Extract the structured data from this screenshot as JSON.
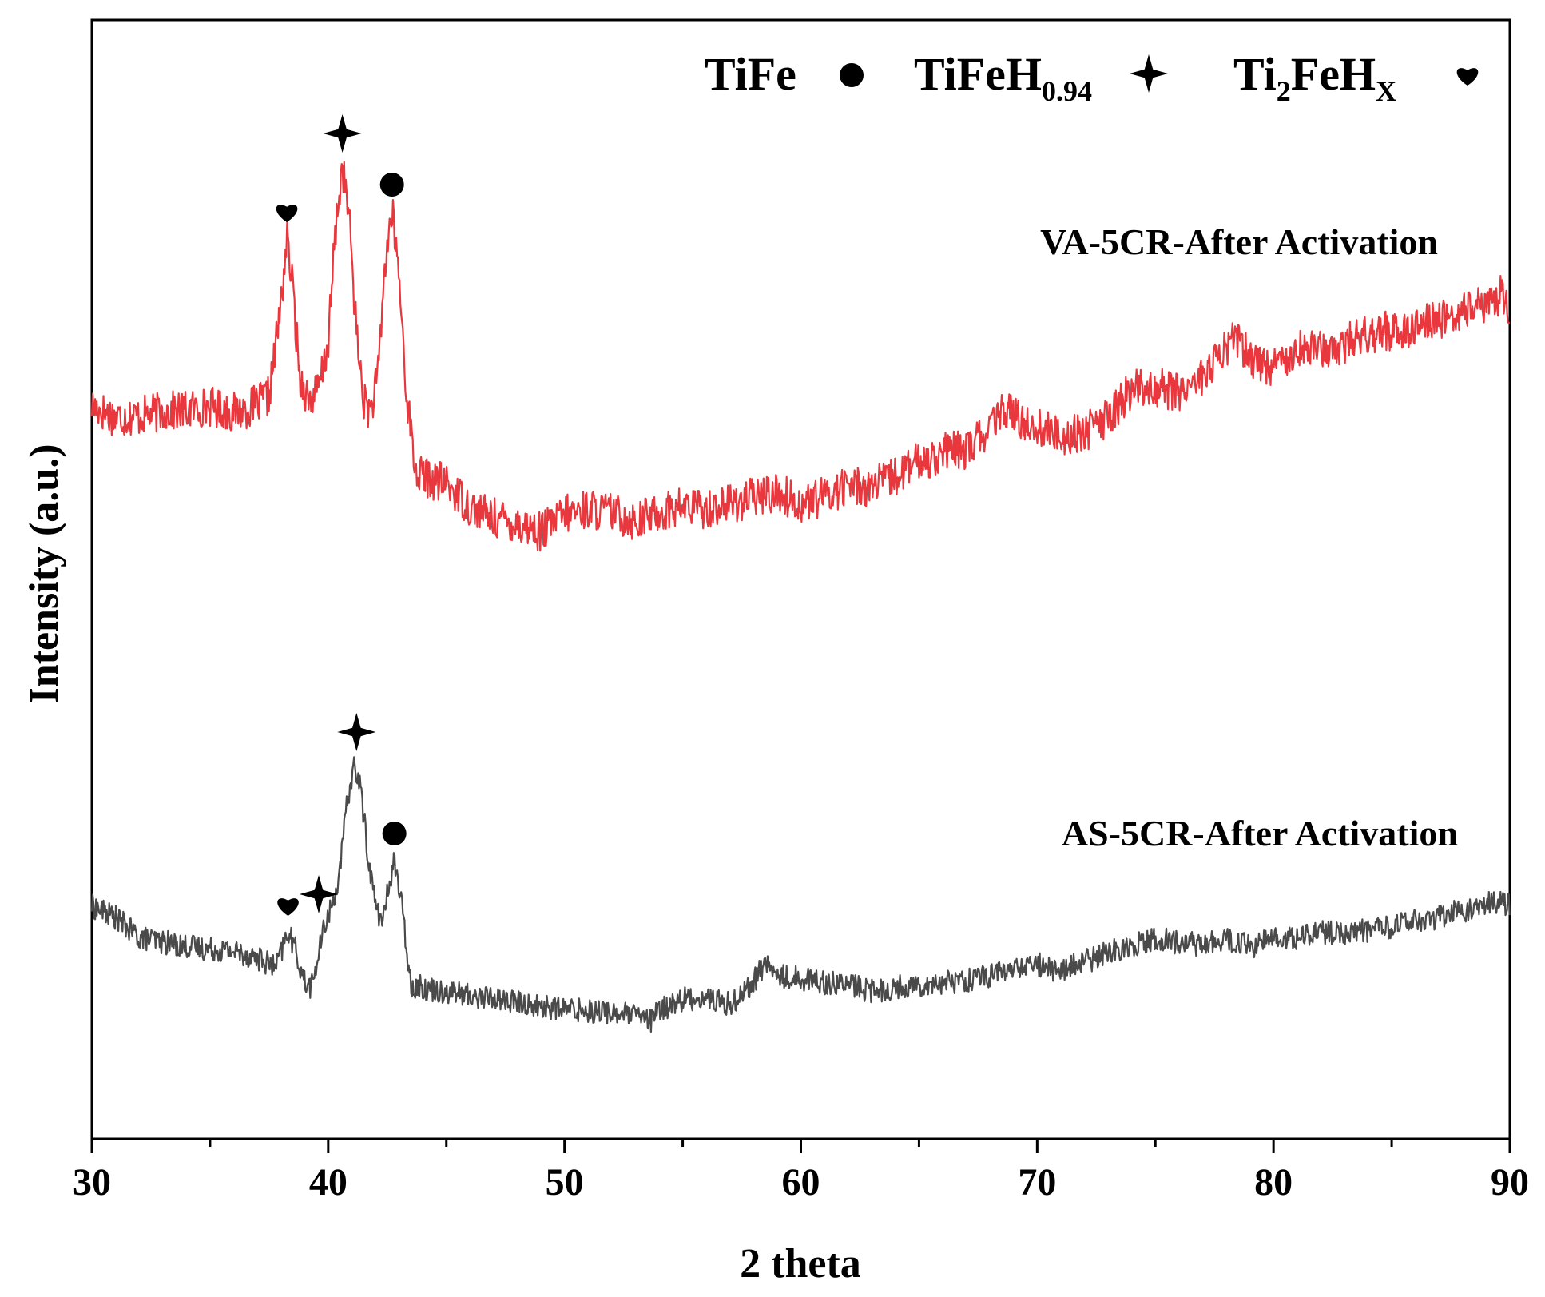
{
  "chart_data": {
    "type": "line",
    "title": "",
    "xlabel": "2 theta",
    "ylabel": "Intensity (a.u.)",
    "xlim": [
      30,
      90
    ],
    "ylim": [
      0,
      100
    ],
    "x_ticks": [
      30,
      40,
      50,
      60,
      70,
      80,
      90
    ],
    "x_tick_labels": [
      "30",
      "40",
      "50",
      "60",
      "70",
      "80",
      "90"
    ],
    "y_ticks_shown": false,
    "legend": {
      "placement": "top-right",
      "entries": [
        {
          "base": "TiFe",
          "sub": "",
          "tail": "",
          "tail_sub": "",
          "marker": "circle"
        },
        {
          "base": "TiFeH",
          "sub": "0.94",
          "tail": "",
          "tail_sub": "",
          "marker": "star"
        },
        {
          "base": "Ti",
          "sub": "2",
          "tail": "FeH",
          "tail_sub": "X",
          "marker": "heart"
        }
      ]
    },
    "series": [
      {
        "name": "VA-5CR-After Activation",
        "color": "#e8383d",
        "points": [
          [
            30,
            65.5
          ],
          [
            31,
            64.5
          ],
          [
            32,
            64.6
          ],
          [
            33,
            65.0
          ],
          [
            34,
            65.1
          ],
          [
            35,
            65.5
          ],
          [
            36,
            64.9
          ],
          [
            37,
            65.6
          ],
          [
            37.5,
            66.4
          ],
          [
            38.0,
            74.5
          ],
          [
            38.25,
            80.5
          ],
          [
            38.5,
            76.0
          ],
          [
            38.8,
            68.0
          ],
          [
            39.2,
            66.0
          ],
          [
            39.6,
            67.0
          ],
          [
            40.0,
            71.0
          ],
          [
            40.3,
            81.0
          ],
          [
            40.6,
            87.0
          ],
          [
            40.9,
            82.0
          ],
          [
            41.2,
            72.0
          ],
          [
            41.5,
            66.0
          ],
          [
            41.8,
            65.0
          ],
          [
            42.1,
            68.0
          ],
          [
            42.4,
            78.0
          ],
          [
            42.7,
            83.0
          ],
          [
            43.0,
            77.0
          ],
          [
            43.3,
            67.0
          ],
          [
            43.7,
            59.5
          ],
          [
            44.5,
            58.8
          ],
          [
            45,
            58.6
          ],
          [
            46,
            56.5
          ],
          [
            47,
            55.5
          ],
          [
            48,
            55.0
          ],
          [
            49,
            54.2
          ],
          [
            50,
            55.8
          ],
          [
            51,
            56.3
          ],
          [
            52,
            56.0
          ],
          [
            53,
            55.2
          ],
          [
            54,
            56.0
          ],
          [
            55,
            56.5
          ],
          [
            56,
            56.3
          ],
          [
            57,
            56.8
          ],
          [
            58,
            57.3
          ],
          [
            59,
            57.8
          ],
          [
            60,
            56.7
          ],
          [
            61,
            57.4
          ],
          [
            62,
            58.5
          ],
          [
            63,
            58.2
          ],
          [
            64,
            59.2
          ],
          [
            65,
            60.5
          ],
          [
            66,
            61.3
          ],
          [
            67,
            61.6
          ],
          [
            68,
            63.5
          ],
          [
            68.8,
            65.5
          ],
          [
            69,
            64.5
          ],
          [
            70,
            63.6
          ],
          [
            71,
            62.8
          ],
          [
            72,
            63.2
          ],
          [
            73,
            64.4
          ],
          [
            74,
            67.0
          ],
          [
            75,
            67.2
          ],
          [
            76,
            66.8
          ],
          [
            77,
            68.2
          ],
          [
            78,
            70.5
          ],
          [
            78.3,
            72.0
          ],
          [
            79,
            69.8
          ],
          [
            80,
            69.0
          ],
          [
            81,
            70.8
          ],
          [
            82,
            70.5
          ],
          [
            83,
            71.0
          ],
          [
            84,
            72.0
          ],
          [
            85,
            72.2
          ],
          [
            86,
            72.6
          ],
          [
            87,
            73.2
          ],
          [
            88,
            73.8
          ],
          [
            89,
            74.5
          ],
          [
            89.6,
            75.5
          ],
          [
            90,
            74.0
          ]
        ],
        "noise_amplitude": 1.8,
        "peak_annotations": [
          {
            "x": 38.25,
            "phase": "Ti2FeHX",
            "marker": "heart"
          },
          {
            "x": 40.6,
            "phase": "TiFeH0.94",
            "marker": "star"
          },
          {
            "x": 42.7,
            "phase": "TiFe",
            "marker": "circle"
          }
        ]
      },
      {
        "name": "AS-5CR-After Activation",
        "color": "#4a4a4a",
        "points": [
          [
            30,
            20.8
          ],
          [
            31,
            19.8
          ],
          [
            32,
            18.0
          ],
          [
            33,
            17.6
          ],
          [
            34,
            17.2
          ],
          [
            35,
            17.0
          ],
          [
            36,
            16.8
          ],
          [
            37,
            16.2
          ],
          [
            37.8,
            15.3
          ],
          [
            38.3,
            18.5
          ],
          [
            38.6,
            17.0
          ],
          [
            39.0,
            14.0
          ],
          [
            39.3,
            13.6
          ],
          [
            39.6,
            16.5
          ],
          [
            39.9,
            19.5
          ],
          [
            40.2,
            21.0
          ],
          [
            40.5,
            24.0
          ],
          [
            40.8,
            30.0
          ],
          [
            41.1,
            33.5
          ],
          [
            41.4,
            31.0
          ],
          [
            41.7,
            25.0
          ],
          [
            42.0,
            21.0
          ],
          [
            42.3,
            19.2
          ],
          [
            42.6,
            23.0
          ],
          [
            42.8,
            25.0
          ],
          [
            43.1,
            21.0
          ],
          [
            43.5,
            13.8
          ],
          [
            44,
            13.5
          ],
          [
            45,
            13.2
          ],
          [
            46,
            12.8
          ],
          [
            47,
            12.6
          ],
          [
            48,
            12.2
          ],
          [
            49,
            11.8
          ],
          [
            50,
            11.6
          ],
          [
            51,
            11.5
          ],
          [
            52,
            11.3
          ],
          [
            53,
            11.0
          ],
          [
            53.7,
            10.5
          ],
          [
            54,
            11.5
          ],
          [
            55,
            12.5
          ],
          [
            56,
            12.6
          ],
          [
            57,
            12.0
          ],
          [
            58,
            14.0
          ],
          [
            58.5,
            15.8
          ],
          [
            59,
            14.5
          ],
          [
            60,
            14.4
          ],
          [
            61,
            14.0
          ],
          [
            62,
            13.8
          ],
          [
            63,
            13.2
          ],
          [
            64,
            13.5
          ],
          [
            65,
            13.8
          ],
          [
            66,
            14.0
          ],
          [
            67,
            14.2
          ],
          [
            68,
            14.6
          ],
          [
            69,
            15.2
          ],
          [
            70,
            15.6
          ],
          [
            71,
            15.0
          ],
          [
            72,
            15.8
          ],
          [
            73,
            16.6
          ],
          [
            74,
            17.4
          ],
          [
            75,
            17.8
          ],
          [
            76,
            17.6
          ],
          [
            77,
            17.4
          ],
          [
            78,
            17.8
          ],
          [
            79,
            17.2
          ],
          [
            80,
            17.8
          ],
          [
            81,
            18.0
          ],
          [
            82,
            18.4
          ],
          [
            83,
            18.4
          ],
          [
            84,
            18.6
          ],
          [
            85,
            19.0
          ],
          [
            86,
            19.4
          ],
          [
            87,
            19.8
          ],
          [
            88,
            20.4
          ],
          [
            89,
            21.0
          ],
          [
            90,
            21.0
          ]
        ],
        "noise_amplitude": 1.1,
        "peak_annotations": [
          {
            "x": 38.3,
            "phase": "Ti2FeHX",
            "marker": "heart"
          },
          {
            "x": 39.6,
            "phase": "TiFeH0.94",
            "marker": "star"
          },
          {
            "x": 41.2,
            "phase": "TiFeH0.94",
            "marker": "star"
          },
          {
            "x": 42.8,
            "phase": "TiFe",
            "marker": "circle"
          }
        ]
      }
    ],
    "annotations": [
      "VA-5CR-After Activation",
      "AS-5CR-After Activation"
    ],
    "grid": false
  }
}
